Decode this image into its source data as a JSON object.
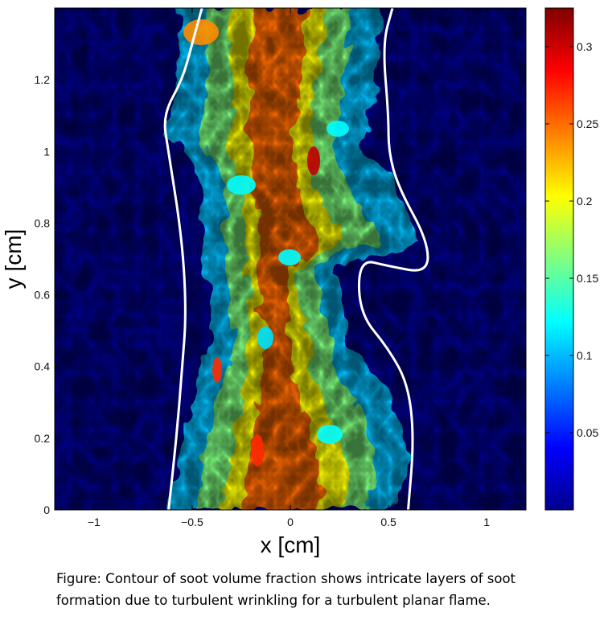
{
  "chart_data": {
    "type": "heatmap",
    "title": "",
    "xlabel": "x [cm]",
    "ylabel": "y [cm]",
    "xlim": [
      -1.2,
      1.2
    ],
    "ylim": [
      0,
      1.4
    ],
    "xticks": [
      -1,
      -0.5,
      0,
      0.5,
      1
    ],
    "xtick_labels": [
      "−1",
      "−0.5",
      "0",
      "0.5",
      "1"
    ],
    "yticks": [
      0,
      0.2,
      0.4,
      0.6,
      0.8,
      1,
      1.2
    ],
    "ytick_labels": [
      "0",
      "0.2",
      "0.4",
      "0.6",
      "0.8",
      "1",
      "1.2"
    ],
    "colorbar": {
      "colormap": "jet",
      "range": [
        0,
        0.325
      ],
      "ticks": [
        0.05,
        0.1,
        0.15,
        0.2,
        0.25,
        0.3
      ],
      "tick_labels": [
        "0.05",
        "0.1",
        "0.15",
        "0.2",
        "0.25",
        "0.3"
      ]
    },
    "background_color": "#00008f",
    "contour_color": "#ffffff",
    "boundary": {
      "left": [
        [
          -0.62,
          0
        ],
        [
          -0.58,
          0.2
        ],
        [
          -0.55,
          0.4
        ],
        [
          -0.53,
          0.55
        ],
        [
          -0.55,
          0.75
        ],
        [
          -0.62,
          1.0
        ],
        [
          -0.65,
          1.1
        ],
        [
          -0.55,
          1.2
        ],
        [
          -0.5,
          1.3
        ],
        [
          -0.45,
          1.4
        ]
      ],
      "right": [
        [
          0.6,
          0
        ],
        [
          0.63,
          0.2
        ],
        [
          0.6,
          0.35
        ],
        [
          0.5,
          0.45
        ],
        [
          0.35,
          0.55
        ],
        [
          0.35,
          0.7
        ],
        [
          0.5,
          0.68
        ],
        [
          0.7,
          0.66
        ],
        [
          0.7,
          0.75
        ],
        [
          0.55,
          0.9
        ],
        [
          0.5,
          1.0
        ],
        [
          0.5,
          1.1
        ],
        [
          0.47,
          1.3
        ],
        [
          0.52,
          1.4
        ]
      ]
    }
  },
  "caption": {
    "line1": "Figure: Contour of soot volume fraction shows intricate layers of soot",
    "line2": "formation due to turbulent wrinkling for a turbulent planar flame."
  }
}
